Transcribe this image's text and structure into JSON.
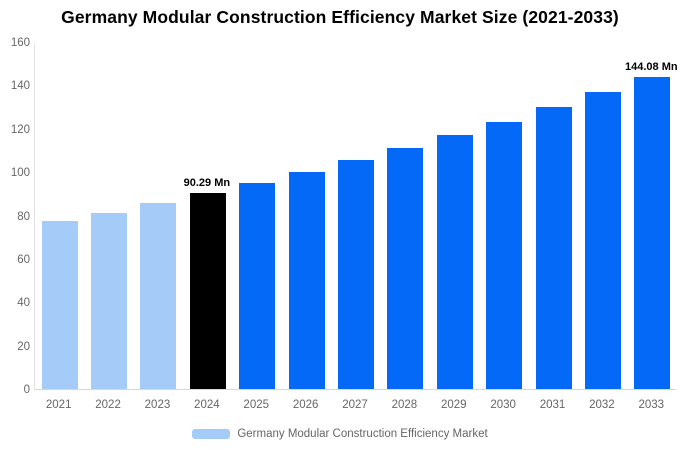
{
  "chart_data": {
    "type": "bar",
    "title": "Germany Modular Construction Efficiency Market Size (2021-2033)",
    "categories": [
      "2021",
      "2022",
      "2023",
      "2024",
      "2025",
      "2026",
      "2027",
      "2028",
      "2029",
      "2030",
      "2031",
      "2032",
      "2033"
    ],
    "values": [
      77.26,
      81.38,
      85.72,
      90.29,
      95.1,
      100.18,
      105.52,
      111.14,
      117.07,
      123.31,
      129.89,
      136.81,
      144.08
    ],
    "unit": "Mn",
    "ylim": [
      0,
      160
    ],
    "yticks": [
      0,
      20,
      40,
      60,
      80,
      100,
      120,
      140,
      160
    ],
    "grid": false,
    "legend_position": "bottom",
    "bar_colors": [
      "#A5CBF8",
      "#A5CBF8",
      "#A5CBF8",
      "#000000",
      "#0569F7",
      "#0569F7",
      "#0569F7",
      "#0569F7",
      "#0569F7",
      "#0569F7",
      "#0569F7",
      "#0569F7",
      "#0569F7"
    ],
    "annotations": [
      {
        "index": 3,
        "text": "90.29 Mn"
      },
      {
        "index": 12,
        "text": "144.08 Mn"
      }
    ],
    "legend": {
      "label": "Germany Modular Construction Efficiency Market",
      "swatch_color": "#A5CBF8"
    },
    "colors": {
      "historical_bar": "#A5CBF8",
      "current_year_bar": "#000000",
      "forecast_bar": "#0569F7",
      "axis_text": "#666666",
      "title_text": "#000000"
    }
  }
}
